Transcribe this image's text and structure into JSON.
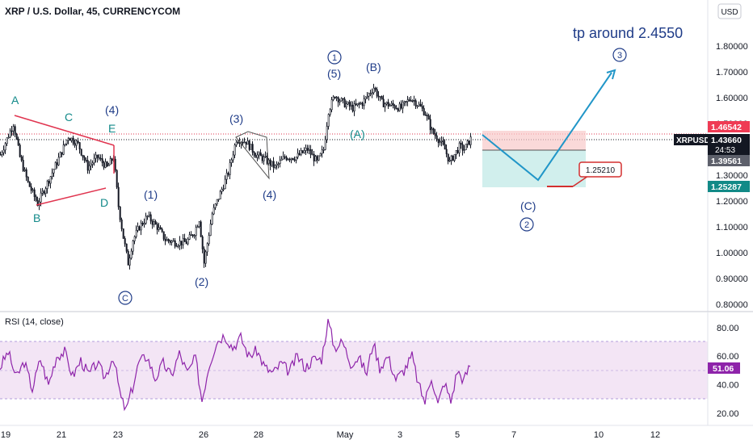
{
  "header": {
    "title": "XRP / U.S. Dollar, 45, CURRENCYCOM",
    "currency_button": "USD"
  },
  "price_axis": {
    "ticks": [
      "1.80000",
      "1.70000",
      "1.60000",
      "1.50000",
      "1.40000",
      "1.30000",
      "1.20000",
      "1.10000",
      "1.00000",
      "0.90000",
      "0.80000"
    ]
  },
  "price_labels": {
    "red": "1.46542",
    "symbol": "XRPUSD",
    "last": "1.43660",
    "countdown": "24:53",
    "grey": "1.39561",
    "teal": "1.25287"
  },
  "rsi": {
    "title": "RSI (14, close)",
    "ticks": [
      "80.00",
      "60.00",
      "40.00",
      "20.00"
    ],
    "value": "51.06"
  },
  "time_axis": {
    "ticks": [
      "19",
      "21",
      "23",
      "26",
      "28",
      "May",
      "3",
      "5",
      "7",
      "10",
      "12"
    ]
  },
  "annotations": {
    "target_text": "tp around 2.4550",
    "box_label": "1.25210",
    "A": "A",
    "B": "B",
    "C": "C",
    "D": "D",
    "E": "E",
    "w4_left": "(4)",
    "w1": "(1)",
    "w2": "(2)",
    "w3": "(3)",
    "w4_mid": "(4)",
    "w5": "(5)",
    "wA": "(A)",
    "wB": "(B)",
    "wC": "(C)",
    "circle_C": "C",
    "circle_1": "1",
    "circle_2": "2",
    "circle_3": "3"
  },
  "colors": {
    "teal_text": "#138a8a",
    "navy_text": "#1f3c88",
    "candle": "#131722",
    "triangle": "#e0344f",
    "projection": "#2196c8",
    "rsi_line": "#8e24aa",
    "rsi_band": "#f3e5f5"
  },
  "chart_data": [
    {
      "type": "candlestick",
      "title": "XRP / U.S. Dollar, 45, CURRENCYCOM",
      "x_ticks": [
        "19",
        "21",
        "23",
        "26",
        "28",
        "May",
        "3",
        "5",
        "7",
        "10",
        "12"
      ],
      "y_range": [
        0.78,
        1.87
      ],
      "y_ticks": [
        1.8,
        1.7,
        1.6,
        1.5,
        1.4,
        1.3,
        1.2,
        1.1,
        1.0,
        0.9,
        0.8
      ],
      "series": [
        {
          "name": "XRPUSD",
          "close_approx": [
            [
              0,
              1.38
            ],
            [
              8,
              1.44
            ],
            [
              16,
              1.5
            ],
            [
              24,
              1.37
            ],
            [
              34,
              1.27
            ],
            [
              46,
              1.19
            ],
            [
              58,
              1.27
            ],
            [
              70,
              1.35
            ],
            [
              84,
              1.45
            ],
            [
              96,
              1.42
            ],
            [
              108,
              1.33
            ],
            [
              120,
              1.37
            ],
            [
              132,
              1.33
            ],
            [
              140,
              1.37
            ],
            [
              146,
              1.18
            ],
            [
              152,
              1.06
            ],
            [
              158,
              0.96
            ],
            [
              164,
              1.05
            ],
            [
              172,
              1.1
            ],
            [
              182,
              1.14
            ],
            [
              194,
              1.1
            ],
            [
              204,
              1.05
            ],
            [
              216,
              1.04
            ],
            [
              230,
              1.04
            ],
            [
              240,
              1.08
            ],
            [
              246,
              1.13
            ],
            [
              252,
              0.96
            ],
            [
              262,
              1.15
            ],
            [
              272,
              1.23
            ],
            [
              282,
              1.31
            ],
            [
              292,
              1.44
            ],
            [
              304,
              1.43
            ],
            [
              316,
              1.38
            ],
            [
              328,
              1.36
            ],
            [
              340,
              1.33
            ],
            [
              352,
              1.37
            ],
            [
              366,
              1.37
            ],
            [
              380,
              1.4
            ],
            [
              392,
              1.35
            ],
            [
              400,
              1.4
            ],
            [
              406,
              1.55
            ],
            [
              414,
              1.61
            ],
            [
              424,
              1.58
            ],
            [
              436,
              1.56
            ],
            [
              448,
              1.58
            ],
            [
              462,
              1.64
            ],
            [
              472,
              1.58
            ],
            [
              484,
              1.57
            ],
            [
              496,
              1.56
            ],
            [
              508,
              1.6
            ],
            [
              518,
              1.57
            ],
            [
              526,
              1.54
            ],
            [
              534,
              1.47
            ],
            [
              542,
              1.44
            ],
            [
              550,
              1.4
            ],
            [
              556,
              1.35
            ],
            [
              562,
              1.38
            ],
            [
              568,
              1.41
            ],
            [
              574,
              1.4
            ],
            [
              582,
              1.44
            ]
          ]
        }
      ],
      "horizontal_levels": [
        1.46542,
        1.4366,
        1.39561,
        1.25287
      ],
      "projection_path": [
        1.4366,
        1.2788,
        1.7
      ],
      "projection_target": "tp around 2.4550"
    },
    {
      "type": "line",
      "title": "RSI (14, close)",
      "y_range": [
        16,
        86
      ],
      "y_ticks": [
        80,
        60,
        40,
        20
      ],
      "band": [
        30,
        70
      ],
      "series": [
        {
          "name": "RSI (14, close)",
          "values_approx": [
            [
              0,
              52
            ],
            [
              10,
              63
            ],
            [
              20,
              45
            ],
            [
              30,
              56
            ],
            [
              40,
              37
            ],
            [
              50,
              58
            ],
            [
              60,
              40
            ],
            [
              70,
              60
            ],
            [
              80,
              63
            ],
            [
              90,
              46
            ],
            [
              100,
              57
            ],
            [
              110,
              47
            ],
            [
              120,
              55
            ],
            [
              130,
              45
            ],
            [
              140,
              60
            ],
            [
              150,
              30
            ],
            [
              156,
              22
            ],
            [
              164,
              38
            ],
            [
              172,
              56
            ],
            [
              182,
              60
            ],
            [
              192,
              44
            ],
            [
              202,
              55
            ],
            [
              212,
              46
            ],
            [
              222,
              62
            ],
            [
              232,
              48
            ],
            [
              242,
              59
            ],
            [
              250,
              29
            ],
            [
              258,
              52
            ],
            [
              268,
              70
            ],
            [
              278,
              75
            ],
            [
              288,
              66
            ],
            [
              298,
              73
            ],
            [
              308,
              60
            ],
            [
              318,
              64
            ],
            [
              328,
              52
            ],
            [
              338,
              48
            ],
            [
              348,
              55
            ],
            [
              358,
              49
            ],
            [
              368,
              60
            ],
            [
              378,
              52
            ],
            [
              388,
              58
            ],
            [
              398,
              58
            ],
            [
              406,
              85
            ],
            [
              414,
              66
            ],
            [
              424,
              70
            ],
            [
              434,
              55
            ],
            [
              444,
              59
            ],
            [
              454,
              48
            ],
            [
              462,
              70
            ],
            [
              470,
              52
            ],
            [
              480,
              60
            ],
            [
              490,
              44
            ],
            [
              500,
              50
            ],
            [
              510,
              60
            ],
            [
              518,
              40
            ],
            [
              526,
              28
            ],
            [
              534,
              46
            ],
            [
              542,
              26
            ],
            [
              550,
              42
            ],
            [
              558,
              28
            ],
            [
              566,
              50
            ],
            [
              574,
              43
            ],
            [
              582,
              54
            ]
          ]
        }
      ],
      "current": 51.06
    }
  ]
}
